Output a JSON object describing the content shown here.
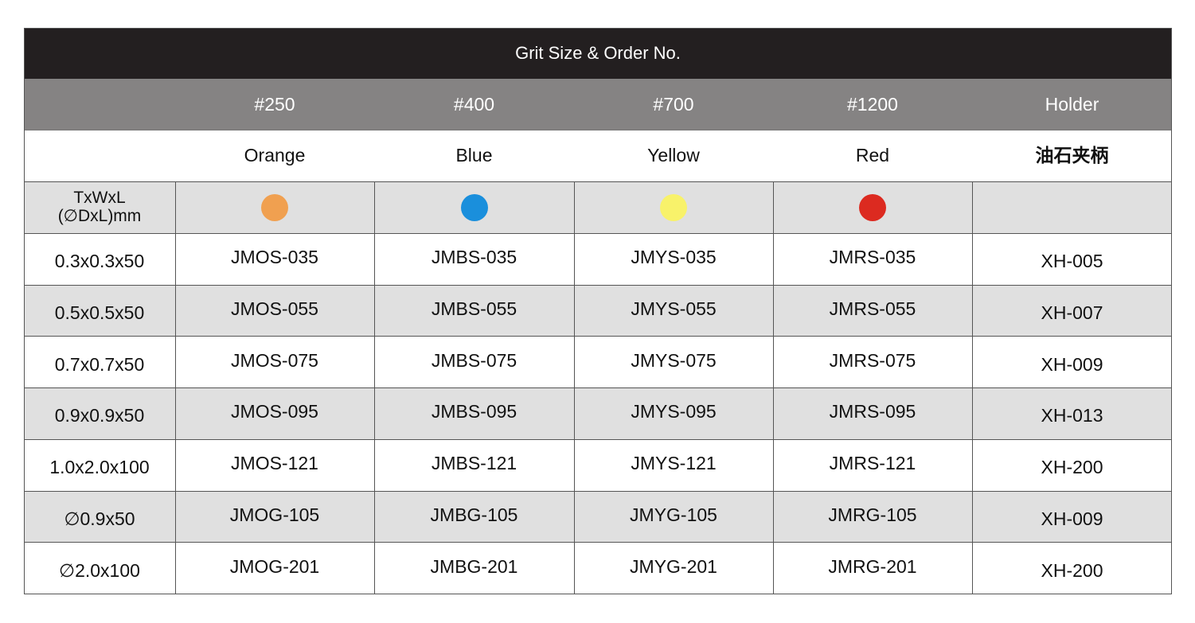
{
  "title": "Grit Size & Order No.",
  "grits": [
    "#250",
    "#400",
    "#700",
    "#1200",
    "Holder"
  ],
  "colors": [
    "Orange",
    "Blue",
    "Yellow",
    "Red",
    "油石夹柄"
  ],
  "dimension_label": [
    "TxWxL",
    "(∅DxL)mm"
  ],
  "swatches": [
    "#f0a050",
    "#1a8fdc",
    "#f8f26a",
    "#dc2a20"
  ],
  "rows": [
    [
      "0.3x0.3x50",
      "JMOS-035",
      "JMBS-035",
      "JMYS-035",
      "JMRS-035",
      "XH-005"
    ],
    [
      "0.5x0.5x50",
      "JMOS-055",
      "JMBS-055",
      "JMYS-055",
      "JMRS-055",
      "XH-007"
    ],
    [
      "0.7x0.7x50",
      "JMOS-075",
      "JMBS-075",
      "JMYS-075",
      "JMRS-075",
      "XH-009"
    ],
    [
      "0.9x0.9x50",
      "JMOS-095",
      "JMBS-095",
      "JMYS-095",
      "JMRS-095",
      "XH-013"
    ],
    [
      "1.0x2.0x100",
      "JMOS-121",
      "JMBS-121",
      "JMYS-121",
      "JMRS-121",
      "XH-200"
    ],
    [
      "∅0.9x50",
      "JMOG-105",
      "JMBG-105",
      "JMYG-105",
      "JMRG-105",
      "XH-009"
    ],
    [
      "∅2.0x100",
      "JMOG-201",
      "JMBG-201",
      "JMYG-201",
      "JMRG-201",
      "XH-200"
    ]
  ]
}
